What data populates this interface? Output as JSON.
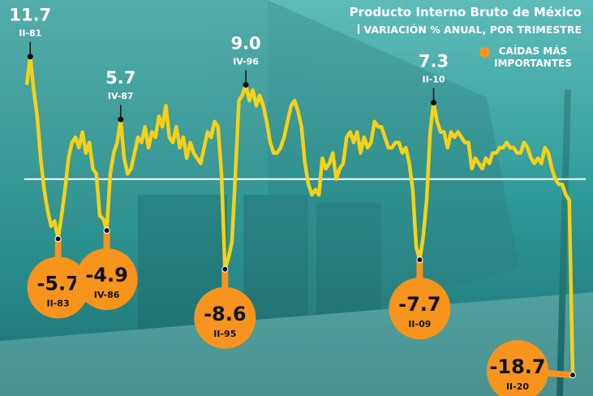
{
  "chart_data": {
    "type": "line",
    "title": "Producto Interno Bruto de México",
    "subtitle": "VARIACIÓN % ANUAL, POR TRIMESTRE",
    "highlight_label": "CAÍDAS MÁS IMPORTANTES",
    "highlight_color": "#f7941d",
    "color": "#f7d117",
    "ylim": [
      -20.7,
      17.1
    ],
    "categories": [
      null,
      "II-81",
      null,
      null,
      null,
      null,
      null,
      null,
      null,
      "II-83",
      null,
      null,
      null,
      null,
      null,
      null,
      null,
      null,
      null,
      null,
      null,
      null,
      null,
      "IV-86",
      null,
      null,
      null,
      "IV-87",
      null,
      null,
      null,
      null,
      null,
      null,
      null,
      null,
      null,
      null,
      null,
      null,
      null,
      null,
      null,
      null,
      null,
      null,
      null,
      null,
      null,
      null,
      null,
      null,
      null,
      null,
      null,
      null,
      null,
      "II-95",
      null,
      null,
      null,
      null,
      null,
      "IV-96",
      null,
      null,
      null,
      null,
      null,
      null,
      null,
      null,
      null,
      null,
      null,
      null,
      null,
      null,
      null,
      null,
      null,
      null,
      null,
      null,
      null,
      null,
      null,
      null,
      null,
      null,
      null,
      null,
      null,
      null,
      null,
      null,
      null,
      null,
      null,
      null,
      null,
      null,
      null,
      null,
      null,
      null,
      null,
      null,
      null,
      null,
      null,
      null,
      null,
      "II-09",
      null,
      null,
      null,
      "II-10",
      null,
      null,
      null,
      null,
      null,
      null,
      null,
      null,
      null,
      null,
      null,
      null,
      null,
      null,
      null,
      null,
      null,
      null,
      null,
      null,
      null,
      null,
      null,
      null,
      null,
      null,
      null,
      null,
      null,
      null,
      null,
      null,
      null,
      null,
      null,
      null,
      null,
      null,
      null,
      "II-20"
    ],
    "values": [
      9.0,
      11.7,
      8.5,
      6.0,
      2.0,
      -1.0,
      -3.0,
      -4.5,
      -4.0,
      -5.7,
      -3.5,
      -1.0,
      2.0,
      3.5,
      4.0,
      3.0,
      4.5,
      2.5,
      3.5,
      1.0,
      0.5,
      -3.5,
      -3.8,
      -4.9,
      0.5,
      2.5,
      3.5,
      5.7,
      2.0,
      0.5,
      1.0,
      2.5,
      4.0,
      3.5,
      5.0,
      3.0,
      4.5,
      4.0,
      6.0,
      5.0,
      7.0,
      4.0,
      3.5,
      5.0,
      3.0,
      4.0,
      2.0,
      3.5,
      2.5,
      2.0,
      1.5,
      3.0,
      4.5,
      4.0,
      5.5,
      5.0,
      0.5,
      -8.6,
      -7.5,
      -6.0,
      0.5,
      7.5,
      8.0,
      9.0,
      7.5,
      8.5,
      7.0,
      8.0,
      7.0,
      5.5,
      3.5,
      2.5,
      2.5,
      3.0,
      4.0,
      5.5,
      7.0,
      7.5,
      6.5,
      5.0,
      1.5,
      -0.5,
      -1.5,
      -1.0,
      -1.5,
      2.0,
      1.0,
      1.5,
      2.5,
      0.0,
      1.0,
      1.5,
      4.0,
      4.5,
      3.5,
      4.5,
      2.5,
      4.0,
      3.0,
      3.5,
      5.5,
      5.0,
      5.0,
      4.0,
      3.0,
      3.0,
      3.5,
      3.5,
      2.5,
      3.0,
      1.5,
      -1.0,
      -6.5,
      -7.7,
      -5.5,
      -2.0,
      4.5,
      7.3,
      5.5,
      4.5,
      4.5,
      3.0,
      4.5,
      4.0,
      4.5,
      4.0,
      3.5,
      3.5,
      1.0,
      2.0,
      1.5,
      1.0,
      2.0,
      1.5,
      2.5,
      2.5,
      3.0,
      3.0,
      3.5,
      3.0,
      3.0,
      2.5,
      2.5,
      3.5,
      3.0,
      2.0,
      1.5,
      2.0,
      1.5,
      3.0,
      2.5,
      1.0,
      0.0,
      -0.5,
      -0.5,
      -1.5,
      -2.0,
      -18.7
    ],
    "value_labels": [
      null,
      null,
      null,
      null,
      null,
      null,
      null,
      null,
      null,
      null,
      null,
      null,
      null,
      null,
      null,
      null,
      null,
      null,
      null,
      null,
      null,
      null,
      null,
      null,
      null,
      null,
      null,
      null,
      null,
      null,
      null,
      null,
      null,
      null,
      null,
      null,
      null,
      null,
      null,
      null,
      null,
      null,
      null,
      null,
      null,
      null,
      null,
      null,
      null,
      null,
      null,
      null,
      null,
      null,
      null,
      null,
      null,
      null,
      null,
      null,
      null,
      null,
      null,
      "9.0",
      null,
      null,
      null,
      null,
      null,
      null,
      null,
      null,
      null,
      null,
      null,
      null,
      null,
      null,
      null,
      null,
      null,
      null,
      null,
      null,
      null,
      null,
      null,
      null,
      null,
      null,
      null,
      null,
      null,
      null,
      null,
      null,
      null,
      null,
      null,
      null,
      null,
      null,
      null,
      null,
      null,
      null,
      null,
      null,
      null,
      null,
      null,
      null,
      null,
      null,
      null,
      null,
      null,
      null,
      null,
      null,
      null,
      null,
      null,
      null,
      null,
      null,
      null,
      null,
      null,
      null,
      null,
      null,
      null,
      null,
      null,
      null,
      null,
      null,
      null,
      null,
      null,
      null,
      null,
      null,
      null,
      null,
      null,
      null,
      null,
      null,
      null,
      null,
      null,
      null,
      null,
      null,
      null,
      null
    ]
  }
}
